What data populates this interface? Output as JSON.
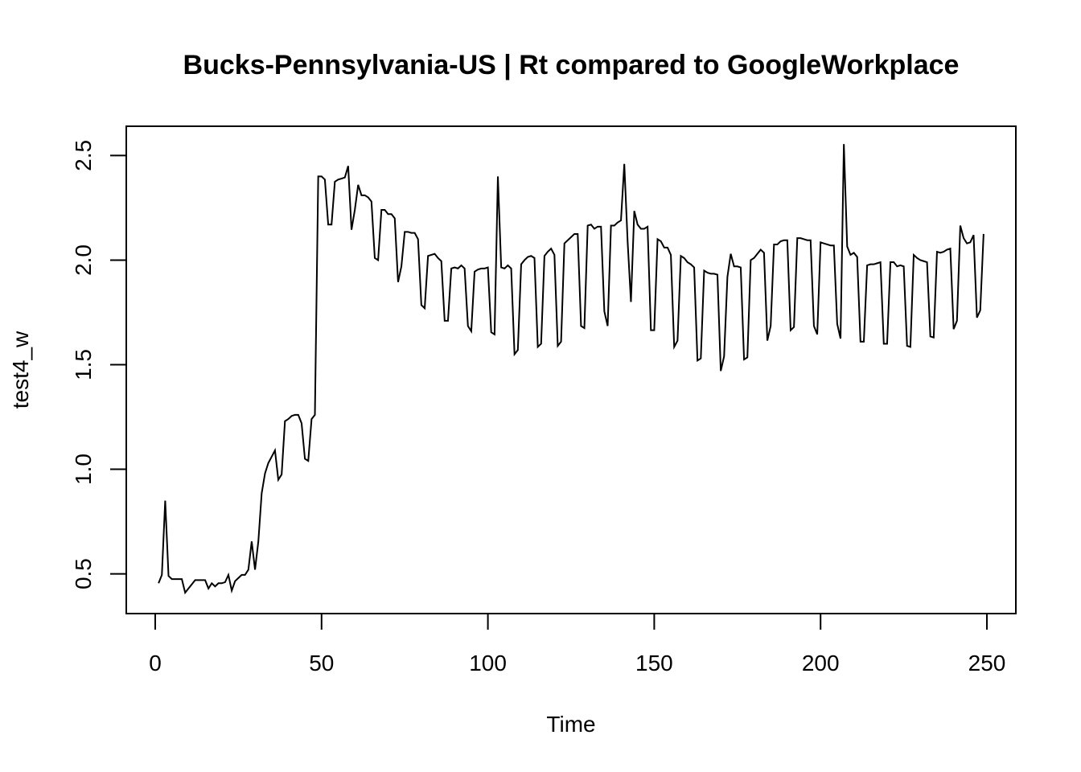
{
  "chart_data": {
    "type": "line",
    "title": "Bucks-Pennsylvania-US | Rt compared to GoogleWorkplace",
    "xlabel": "Time",
    "ylabel": "test4_w",
    "xlim": [
      -8.7,
      258.7
    ],
    "ylim": [
      0.31,
      2.64
    ],
    "x_ticks": [
      0,
      50,
      100,
      150,
      200,
      250
    ],
    "y_ticks": [
      0.5,
      1.0,
      1.5,
      2.0,
      2.5
    ],
    "x_tick_labels": [
      "0",
      "50",
      "100",
      "150",
      "200",
      "250"
    ],
    "y_tick_labels": [
      "0.5",
      "1.0",
      "1.5",
      "2.0",
      "2.5"
    ],
    "grid": false,
    "legend": "none",
    "series": [
      {
        "color": "#000000",
        "x_start": 1,
        "values": [
          0.455,
          0.495,
          0.85,
          0.49,
          0.475,
          0.475,
          0.475,
          0.475,
          0.41,
          0.43,
          0.45,
          0.47,
          0.47,
          0.47,
          0.47,
          0.43,
          0.455,
          0.44,
          0.455,
          0.455,
          0.46,
          0.495,
          0.42,
          0.465,
          0.48,
          0.495,
          0.495,
          0.52,
          0.655,
          0.52,
          0.655,
          0.885,
          0.98,
          1.03,
          1.06,
          1.09,
          0.95,
          0.975,
          1.23,
          1.24,
          1.255,
          1.26,
          1.26,
          1.22,
          1.05,
          1.04,
          1.24,
          1.26,
          2.4,
          2.4,
          2.385,
          2.17,
          2.17,
          2.375,
          2.385,
          2.39,
          2.395,
          2.45,
          2.145,
          2.24,
          2.36,
          2.31,
          2.31,
          2.3,
          2.28,
          2.01,
          2.0,
          2.24,
          2.24,
          2.22,
          2.22,
          2.2,
          1.895,
          1.97,
          2.135,
          2.135,
          2.13,
          2.13,
          2.1,
          1.785,
          1.77,
          2.02,
          2.025,
          2.03,
          2.01,
          1.995,
          1.71,
          1.71,
          1.96,
          1.965,
          1.96,
          1.975,
          1.96,
          1.685,
          1.66,
          1.945,
          1.955,
          1.96,
          1.96,
          1.965,
          1.655,
          1.645,
          2.4,
          1.965,
          1.96,
          1.975,
          1.96,
          1.55,
          1.57,
          1.98,
          2.0,
          2.015,
          2.02,
          2.01,
          1.585,
          1.6,
          2.02,
          2.04,
          2.055,
          2.025,
          1.59,
          1.61,
          2.08,
          2.095,
          2.11,
          2.125,
          2.125,
          1.685,
          1.675,
          2.165,
          2.17,
          2.15,
          2.16,
          2.16,
          1.755,
          1.685,
          2.165,
          2.165,
          2.18,
          2.19,
          2.46,
          2.09,
          1.8,
          2.235,
          2.17,
          2.15,
          2.15,
          2.16,
          1.665,
          1.665,
          2.1,
          2.09,
          2.06,
          2.06,
          2.025,
          1.585,
          1.615,
          2.02,
          2.01,
          1.99,
          1.98,
          1.965,
          1.52,
          1.53,
          1.95,
          1.94,
          1.935,
          1.935,
          1.93,
          1.47,
          1.54,
          1.92,
          2.03,
          1.97,
          1.97,
          1.965,
          1.525,
          1.535,
          2.0,
          2.01,
          2.03,
          2.05,
          2.035,
          1.615,
          1.685,
          2.075,
          2.075,
          2.09,
          2.095,
          2.095,
          1.665,
          1.68,
          2.105,
          2.105,
          2.1,
          2.095,
          2.095,
          1.685,
          1.645,
          2.085,
          2.08,
          2.075,
          2.07,
          2.07,
          1.695,
          1.625,
          2.555,
          2.065,
          2.025,
          2.035,
          2.015,
          1.61,
          1.61,
          1.975,
          1.98,
          1.98,
          1.985,
          1.99,
          1.6,
          1.6,
          1.99,
          1.99,
          1.97,
          1.975,
          1.97,
          1.59,
          1.585,
          2.025,
          2.01,
          2.0,
          1.995,
          1.99,
          1.635,
          1.63,
          2.04,
          2.035,
          2.04,
          2.05,
          2.055,
          1.67,
          1.71,
          2.165,
          2.105,
          2.08,
          2.085,
          2.12,
          1.725,
          1.76,
          2.125
        ]
      }
    ]
  }
}
